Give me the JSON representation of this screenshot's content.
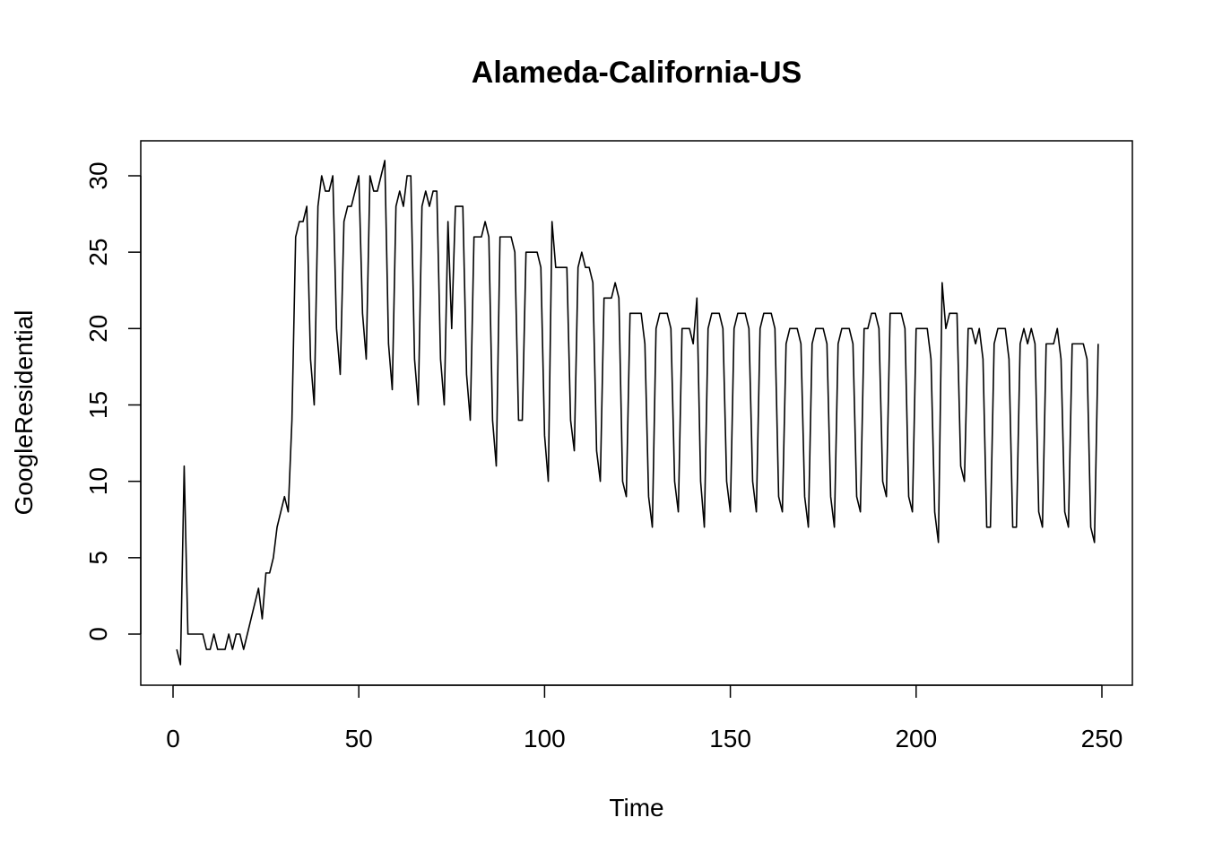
{
  "chart_data": {
    "type": "line",
    "title": "Alameda-California-US",
    "xlabel": "Time",
    "ylabel": "GoogleResidential",
    "xlim": [
      0,
      250
    ],
    "ylim": [
      -2,
      31
    ],
    "x_ticks": [
      0,
      50,
      100,
      150,
      200,
      250
    ],
    "y_ticks": [
      0,
      5,
      10,
      15,
      20,
      25,
      30
    ],
    "grid": false,
    "legend": "none",
    "line_color": "#000000",
    "series": [
      {
        "x_start": 1,
        "x_step": 1,
        "values": [
          -1,
          -2,
          11,
          0,
          0,
          0,
          0,
          0,
          -1,
          -1,
          0,
          -1,
          -1,
          -1,
          0,
          -1,
          0,
          0,
          -1,
          0,
          1,
          2,
          3,
          1,
          4,
          4,
          5,
          7,
          8,
          9,
          8,
          14,
          26,
          27,
          27,
          28,
          18,
          15,
          28,
          30,
          29,
          29,
          30,
          20,
          17,
          27,
          28,
          28,
          29,
          30,
          21,
          18,
          30,
          29,
          29,
          30,
          31,
          19,
          16,
          28,
          29,
          28,
          30,
          30,
          18,
          15,
          28,
          29,
          28,
          29,
          29,
          18,
          15,
          27,
          20,
          28,
          28,
          28,
          17,
          14,
          26,
          26,
          26,
          27,
          26,
          14,
          11,
          26,
          26,
          26,
          26,
          25,
          14,
          14,
          25,
          25,
          25,
          25,
          24,
          13,
          10,
          27,
          24,
          24,
          24,
          24,
          14,
          12,
          24,
          25,
          24,
          24,
          23,
          12,
          10,
          22,
          22,
          22,
          23,
          22,
          10,
          9,
          21,
          21,
          21,
          21,
          19,
          9,
          7,
          20,
          21,
          21,
          21,
          20,
          10,
          8,
          20,
          20,
          20,
          19,
          22,
          10,
          7,
          20,
          21,
          21,
          21,
          20,
          10,
          8,
          20,
          21,
          21,
          21,
          20,
          10,
          8,
          20,
          21,
          21,
          21,
          20,
          9,
          8,
          19,
          20,
          20,
          20,
          19,
          9,
          7,
          19,
          20,
          20,
          20,
          19,
          9,
          7,
          19,
          20,
          20,
          20,
          19,
          9,
          8,
          20,
          20,
          21,
          21,
          20,
          10,
          9,
          21,
          21,
          21,
          21,
          20,
          9,
          8,
          20,
          20,
          20,
          20,
          18,
          8,
          6,
          23,
          20,
          21,
          21,
          21,
          11,
          10,
          20,
          20,
          19,
          20,
          18,
          7,
          7,
          19,
          20,
          20,
          20,
          18,
          7,
          7,
          19,
          20,
          19,
          20,
          19,
          8,
          7,
          19,
          19,
          19,
          20,
          18,
          8,
          7,
          19,
          19,
          19,
          19,
          18,
          7,
          6,
          19
        ]
      }
    ]
  }
}
